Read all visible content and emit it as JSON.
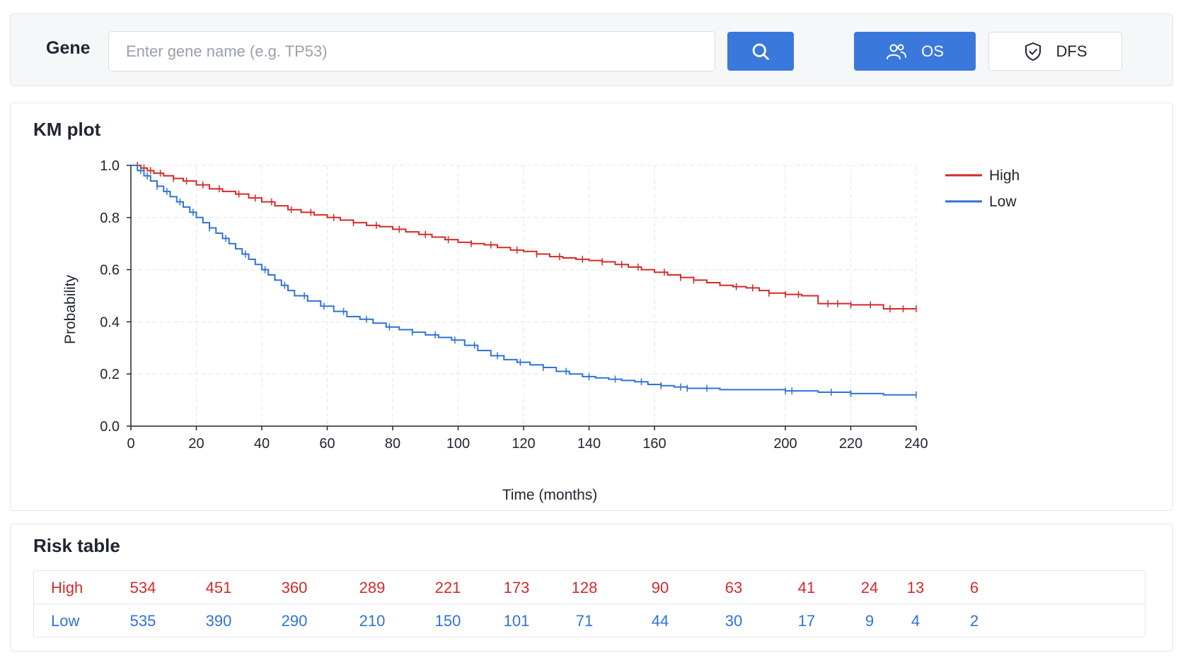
{
  "toolbar": {
    "gene_label": "Gene",
    "gene_placeholder": "Enter gene name (e.g. TP53)",
    "gene_value": "",
    "search_icon": "search-icon",
    "os_label": "OS",
    "os_icon": "users-icon",
    "dfs_label": "DFS",
    "dfs_icon": "shield-check-icon",
    "accent_color": "#3a78db"
  },
  "km": {
    "title": "KM plot"
  },
  "chart_data": {
    "type": "line",
    "xlabel": "Time (months)",
    "ylabel": "Probability",
    "xlim": [
      0,
      240
    ],
    "ylim": [
      0,
      1.0
    ],
    "x_ticks": [
      0,
      20,
      40,
      60,
      80,
      100,
      120,
      140,
      160,
      200,
      220,
      240
    ],
    "x_tick_labels": [
      "0",
      "20",
      "40",
      "60",
      "80",
      "100",
      "120",
      "140",
      "160",
      "200",
      "220",
      "240"
    ],
    "y_ticks": [
      0,
      0.2,
      0.4,
      0.6,
      0.8,
      1.0
    ],
    "y_tick_labels": [
      "0.0",
      "0.2",
      "0.4",
      "0.6",
      "0.8",
      "1.0"
    ],
    "grid": true,
    "legend_position": "top-right",
    "series": [
      {
        "name": "High",
        "color": "#d42a2a",
        "points": [
          [
            0,
            1.0
          ],
          [
            3,
            0.99
          ],
          [
            5,
            0.98
          ],
          [
            7,
            0.97
          ],
          [
            10,
            0.96
          ],
          [
            13,
            0.95
          ],
          [
            16,
            0.94
          ],
          [
            20,
            0.925
          ],
          [
            24,
            0.91
          ],
          [
            28,
            0.9
          ],
          [
            32,
            0.89
          ],
          [
            36,
            0.875
          ],
          [
            40,
            0.86
          ],
          [
            44,
            0.845
          ],
          [
            48,
            0.83
          ],
          [
            52,
            0.82
          ],
          [
            56,
            0.81
          ],
          [
            60,
            0.8
          ],
          [
            64,
            0.79
          ],
          [
            68,
            0.78
          ],
          [
            72,
            0.77
          ],
          [
            76,
            0.765
          ],
          [
            80,
            0.755
          ],
          [
            84,
            0.745
          ],
          [
            88,
            0.735
          ],
          [
            92,
            0.725
          ],
          [
            96,
            0.715
          ],
          [
            100,
            0.705
          ],
          [
            104,
            0.7
          ],
          [
            108,
            0.695
          ],
          [
            112,
            0.685
          ],
          [
            116,
            0.675
          ],
          [
            120,
            0.67
          ],
          [
            124,
            0.66
          ],
          [
            128,
            0.65
          ],
          [
            132,
            0.645
          ],
          [
            136,
            0.64
          ],
          [
            140,
            0.635
          ],
          [
            144,
            0.63
          ],
          [
            148,
            0.62
          ],
          [
            152,
            0.61
          ],
          [
            156,
            0.6
          ],
          [
            160,
            0.59
          ],
          [
            164,
            0.58
          ],
          [
            168,
            0.57
          ],
          [
            172,
            0.56
          ],
          [
            176,
            0.55
          ],
          [
            180,
            0.54
          ],
          [
            184,
            0.535
          ],
          [
            188,
            0.53
          ],
          [
            192,
            0.52
          ],
          [
            195,
            0.51
          ],
          [
            200,
            0.505
          ],
          [
            205,
            0.5
          ],
          [
            210,
            0.47
          ],
          [
            220,
            0.465
          ],
          [
            230,
            0.45
          ],
          [
            240,
            0.45
          ]
        ],
        "censor_x": [
          2,
          4,
          6,
          9,
          13,
          17,
          22,
          27,
          33,
          38,
          43,
          49,
          55,
          62,
          68,
          75,
          82,
          90,
          97,
          104,
          110,
          118,
          124,
          131,
          138,
          144,
          150,
          155,
          163,
          168,
          172,
          185,
          190,
          195,
          200,
          204,
          213,
          216,
          220,
          226,
          232,
          236,
          240
        ]
      },
      {
        "name": "Low",
        "color": "#2f73d6",
        "points": [
          [
            0,
            1.0
          ],
          [
            2,
            0.98
          ],
          [
            4,
            0.96
          ],
          [
            6,
            0.94
          ],
          [
            8,
            0.92
          ],
          [
            10,
            0.9
          ],
          [
            12,
            0.88
          ],
          [
            14,
            0.86
          ],
          [
            16,
            0.84
          ],
          [
            18,
            0.82
          ],
          [
            20,
            0.8
          ],
          [
            22,
            0.78
          ],
          [
            24,
            0.76
          ],
          [
            26,
            0.74
          ],
          [
            28,
            0.72
          ],
          [
            30,
            0.7
          ],
          [
            32,
            0.68
          ],
          [
            34,
            0.66
          ],
          [
            36,
            0.64
          ],
          [
            38,
            0.62
          ],
          [
            40,
            0.6
          ],
          [
            42,
            0.58
          ],
          [
            44,
            0.56
          ],
          [
            46,
            0.54
          ],
          [
            48,
            0.52
          ],
          [
            50,
            0.5
          ],
          [
            54,
            0.48
          ],
          [
            58,
            0.46
          ],
          [
            62,
            0.44
          ],
          [
            66,
            0.42
          ],
          [
            70,
            0.41
          ],
          [
            74,
            0.395
          ],
          [
            78,
            0.38
          ],
          [
            82,
            0.37
          ],
          [
            86,
            0.36
          ],
          [
            90,
            0.35
          ],
          [
            94,
            0.34
          ],
          [
            98,
            0.33
          ],
          [
            102,
            0.31
          ],
          [
            106,
            0.29
          ],
          [
            110,
            0.27
          ],
          [
            114,
            0.255
          ],
          [
            118,
            0.245
          ],
          [
            122,
            0.235
          ],
          [
            126,
            0.225
          ],
          [
            130,
            0.21
          ],
          [
            134,
            0.2
          ],
          [
            138,
            0.19
          ],
          [
            142,
            0.185
          ],
          [
            146,
            0.18
          ],
          [
            150,
            0.175
          ],
          [
            154,
            0.17
          ],
          [
            158,
            0.16
          ],
          [
            162,
            0.155
          ],
          [
            166,
            0.15
          ],
          [
            170,
            0.145
          ],
          [
            180,
            0.14
          ],
          [
            190,
            0.14
          ],
          [
            200,
            0.135
          ],
          [
            210,
            0.13
          ],
          [
            220,
            0.125
          ],
          [
            230,
            0.12
          ],
          [
            240,
            0.12
          ]
        ],
        "censor_x": [
          3,
          5,
          8,
          11,
          15,
          19,
          24,
          29,
          35,
          41,
          47,
          53,
          59,
          65,
          72,
          79,
          86,
          93,
          99,
          105,
          112,
          119,
          126,
          133,
          140,
          148,
          156,
          162,
          168,
          170,
          176,
          200,
          202,
          214,
          220,
          240
        ]
      }
    ]
  },
  "risk": {
    "title": "Risk table",
    "rows": [
      {
        "label": "High",
        "color": "#d42a2a",
        "values": [
          "534",
          "451",
          "360",
          "289",
          "221",
          "173",
          "128",
          "90",
          "63",
          "41",
          "24",
          "13",
          "6"
        ]
      },
      {
        "label": "Low",
        "color": "#2f73d6",
        "values": [
          "535",
          "390",
          "290",
          "210",
          "150",
          "101",
          "71",
          "44",
          "30",
          "17",
          "9",
          "4",
          "2"
        ]
      }
    ]
  }
}
